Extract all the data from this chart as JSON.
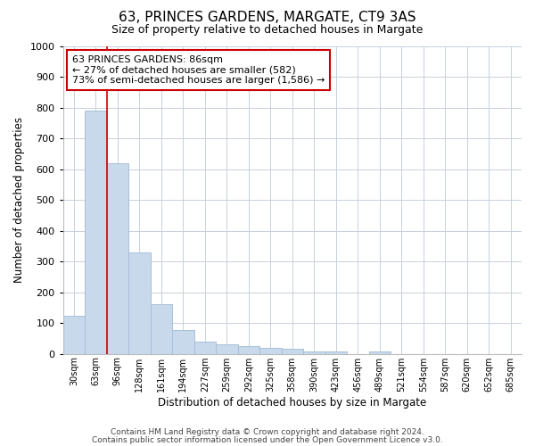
{
  "title": "63, PRINCES GARDENS, MARGATE, CT9 3AS",
  "subtitle": "Size of property relative to detached houses in Margate",
  "xlabel": "Distribution of detached houses by size in Margate",
  "ylabel": "Number of detached properties",
  "categories": [
    "30sqm",
    "63sqm",
    "96sqm",
    "128sqm",
    "161sqm",
    "194sqm",
    "227sqm",
    "259sqm",
    "292sqm",
    "325sqm",
    "358sqm",
    "390sqm",
    "423sqm",
    "456sqm",
    "489sqm",
    "521sqm",
    "554sqm",
    "587sqm",
    "620sqm",
    "652sqm",
    "685sqm"
  ],
  "values": [
    125,
    790,
    620,
    330,
    160,
    78,
    40,
    30,
    25,
    18,
    15,
    8,
    8,
    0,
    8,
    0,
    0,
    0,
    0,
    0,
    0
  ],
  "highlight_index": 1,
  "bar_color": "#c9d9ec",
  "bar_edge_color": "#a8c0d8",
  "highlight_line_color": "#cc0000",
  "ylim": [
    0,
    1000
  ],
  "yticks": [
    0,
    100,
    200,
    300,
    400,
    500,
    600,
    700,
    800,
    900,
    1000
  ],
  "annotation_line1": "63 PRINCES GARDENS: 86sqm",
  "annotation_line2": "← 27% of detached houses are smaller (582)",
  "annotation_line3": "73% of semi-detached houses are larger (1,586) →",
  "annotation_box_color": "#ffffff",
  "annotation_box_edge_color": "#cc0000",
  "footer_line1": "Contains HM Land Registry data © Crown copyright and database right 2024.",
  "footer_line2": "Contains public sector information licensed under the Open Government Licence v3.0.",
  "background_color": "#ffffff",
  "grid_color": "#c8d0dc"
}
